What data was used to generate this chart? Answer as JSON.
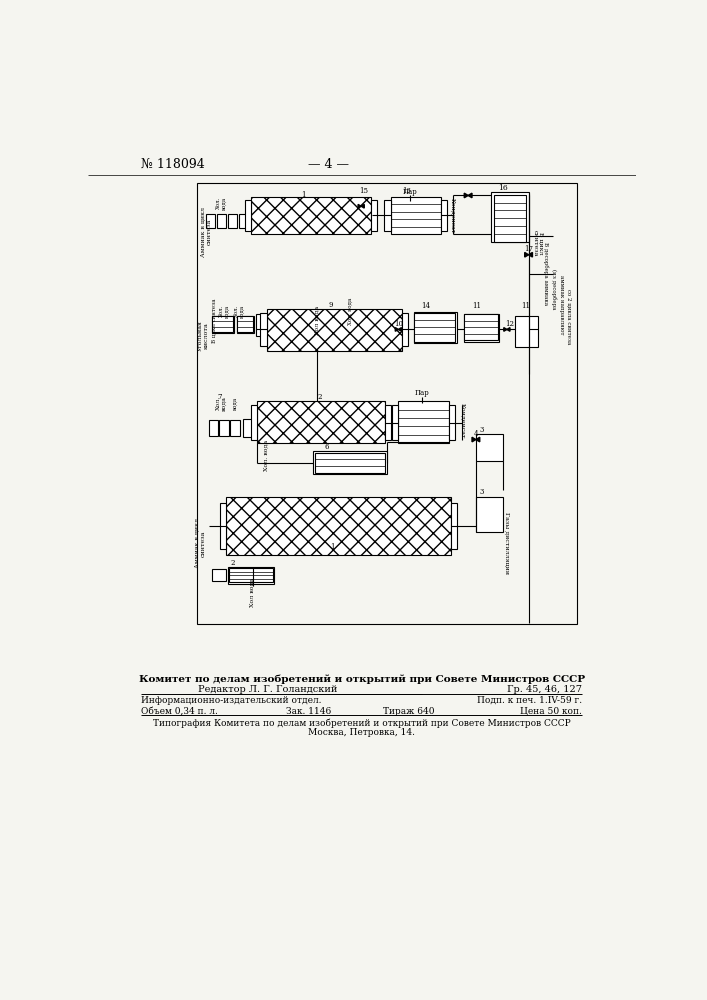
{
  "page_number": "№ 118094",
  "page_label": "— 4 —",
  "bg_color": "#f5f5f0",
  "footer_bold": "Комитет по делам изобретений и открытий при Совете Министров СССР",
  "footer_editor": "Редактор Л. Г. Голандский",
  "footer_gr": "Гр. 45, 46, 127",
  "footer_info": "Информационно-издательский отдел.",
  "footer_podp": "Подп. к печ. 1.IV-59 г.",
  "footer_obem": "Объем 0,34 п. л.",
  "footer_zak": "Зак. 1146",
  "footer_tirazh": "Тираж 640",
  "footer_cena": "Цена 50 коп.",
  "footer_tipograf": "Типография Комитета по делам изобретений и открытий при Совете Министров СССР",
  "footer_addr": "Москва, Петровка, 14."
}
